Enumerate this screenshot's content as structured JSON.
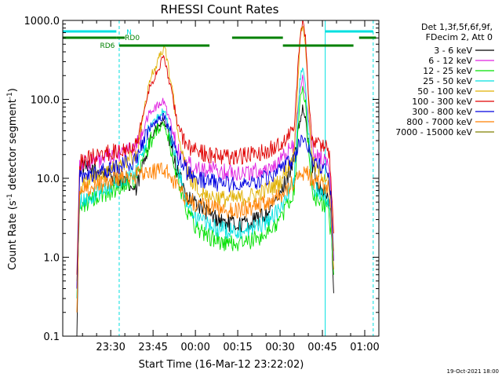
{
  "chart_data": {
    "type": "line",
    "title": "RHESSI Count Rates",
    "xlabel": "Start Time (16-Mar-12 23:22:02)",
    "ylabel": "Count Rate (s⁻¹ detector segment⁻¹)",
    "ylabel_parts": [
      "Count Rate (s",
      "-1",
      " detector segment",
      "-1",
      ")"
    ],
    "yscale": "log",
    "ylim": [
      0.1,
      1000.0
    ],
    "yticks": [
      0.1,
      1.0,
      10.0,
      100.0,
      1000.0
    ],
    "ytick_labels": [
      "0.1",
      "1.0",
      "10.0",
      "100.0",
      "1000.0"
    ],
    "x_range_min": [
      -9,
      103
    ],
    "xticks_min": [
      8,
      23,
      38,
      53,
      68,
      83,
      98
    ],
    "xtick_labels": [
      "23:30",
      "23:45",
      "00:00",
      "00:15",
      "00:30",
      "00:45",
      "01:00"
    ],
    "legend_position": "right",
    "legend_header": [
      "Det 1,3f,5f,6f,9f,",
      "FDecim 2, Att 0"
    ],
    "series": [
      {
        "name": "3 - 6 keV",
        "color": "#000000",
        "x": [
          -4,
          -3,
          0,
          5,
          10,
          17,
          22,
          27,
          30,
          32,
          35,
          38,
          43,
          48,
          53,
          58,
          63,
          68,
          73,
          75,
          76,
          77,
          78,
          79,
          80,
          81,
          82,
          85,
          86,
          87
        ],
        "y": [
          0.1,
          14,
          13,
          12,
          10,
          7,
          33,
          55,
          20,
          11,
          6,
          5,
          3.5,
          2.8,
          2.6,
          2.8,
          3.5,
          6,
          18,
          50,
          75,
          55,
          30,
          18,
          12,
          9,
          8,
          6,
          3,
          0.35
        ]
      },
      {
        "name": "6 - 12 keV",
        "color": "#e020e0",
        "x": [
          -4,
          -3,
          0,
          5,
          10,
          17,
          22,
          27,
          30,
          32,
          35,
          38,
          43,
          48,
          53,
          58,
          63,
          68,
          73,
          75,
          76,
          77,
          78,
          79,
          80,
          81,
          82,
          85,
          86,
          87
        ],
        "y": [
          0.4,
          15,
          16,
          17,
          20,
          25,
          70,
          95,
          40,
          22,
          16,
          14,
          13,
          12,
          12,
          12,
          13,
          16,
          28,
          120,
          190,
          120,
          55,
          30,
          22,
          20,
          19,
          16,
          8,
          0.9
        ]
      },
      {
        "name": "12 - 25 keV",
        "color": "#00e000",
        "x": [
          -4,
          -3,
          0,
          5,
          10,
          17,
          22,
          27,
          30,
          32,
          35,
          38,
          43,
          48,
          53,
          58,
          63,
          68,
          73,
          75,
          76,
          77,
          78,
          79,
          80,
          81,
          82,
          85,
          86,
          87
        ],
        "y": [
          0.3,
          4.5,
          5,
          6,
          7.5,
          10,
          30,
          50,
          18,
          9,
          4,
          2.5,
          1.8,
          1.5,
          1.5,
          1.6,
          2,
          3,
          7,
          90,
          140,
          90,
          25,
          9,
          6,
          5.5,
          5,
          4.5,
          2,
          0.6
        ]
      },
      {
        "name": "25 - 50 keV",
        "color": "#00e0e0",
        "x": [
          -4,
          -3,
          0,
          5,
          10,
          17,
          22,
          27,
          30,
          32,
          35,
          38,
          43,
          48,
          53,
          58,
          63,
          68,
          73,
          75,
          76,
          77,
          78,
          79,
          80,
          81,
          82,
          85,
          86,
          87
        ],
        "y": [
          0.3,
          5,
          5.5,
          7,
          9,
          12,
          45,
          75,
          25,
          12,
          5,
          3.2,
          2.5,
          2.2,
          2.2,
          2.3,
          2.8,
          4,
          10,
          160,
          260,
          150,
          40,
          12,
          8,
          7,
          6.5,
          5.5,
          2.5,
          0.7
        ]
      },
      {
        "name": "50 - 100 keV",
        "color": "#e0b000",
        "x": [
          -4,
          -3,
          0,
          5,
          10,
          17,
          22,
          27,
          30,
          32,
          35,
          38,
          43,
          48,
          53,
          58,
          63,
          68,
          73,
          75,
          76,
          77,
          78,
          79,
          80,
          81,
          82,
          85,
          86,
          87
        ],
        "y": [
          0.5,
          8,
          9,
          11,
          14,
          20,
          180,
          480,
          120,
          35,
          12,
          8,
          6,
          5.5,
          5.5,
          6,
          7,
          9,
          20,
          550,
          900,
          520,
          110,
          25,
          15,
          13,
          12,
          10,
          5,
          1.2
        ]
      },
      {
        "name": "100 - 300 keV",
        "color": "#e00000",
        "x": [
          -4,
          -3,
          0,
          5,
          10,
          17,
          22,
          27,
          30,
          32,
          35,
          38,
          43,
          48,
          53,
          58,
          63,
          68,
          73,
          75,
          76,
          77,
          78,
          79,
          80,
          81,
          82,
          85,
          86,
          87
        ],
        "y": [
          0.6,
          16,
          18,
          20,
          22,
          28,
          150,
          350,
          100,
          45,
          25,
          22,
          20,
          19,
          19,
          20,
          22,
          26,
          45,
          600,
          1000,
          600,
          130,
          40,
          30,
          28,
          27,
          25,
          12,
          2
        ]
      },
      {
        "name": "300 - 800 keV",
        "color": "#0000e0",
        "x": [
          -4,
          -3,
          0,
          5,
          10,
          17,
          22,
          27,
          30,
          32,
          35,
          38,
          43,
          48,
          53,
          58,
          63,
          68,
          73,
          75,
          76,
          77,
          78,
          79,
          80,
          81,
          82,
          85,
          86,
          87
        ],
        "y": [
          0.4,
          10,
          11,
          12,
          14,
          17,
          45,
          60,
          30,
          18,
          12,
          10,
          9,
          8.5,
          8.5,
          9,
          10,
          12,
          18,
          28,
          35,
          30,
          25,
          20,
          17,
          15,
          14,
          12,
          6,
          0.9
        ]
      },
      {
        "name": "800 - 7000 keV",
        "color": "#ff8000",
        "x": [
          -4,
          -3,
          0,
          5,
          10,
          17,
          22,
          27,
          30,
          32,
          35,
          38,
          43,
          48,
          53,
          58,
          63,
          68,
          73,
          75,
          76,
          77,
          78,
          79,
          80,
          81,
          82,
          85,
          86,
          87
        ],
        "y": [
          0.2,
          7,
          7.5,
          8.5,
          10,
          11,
          12,
          13,
          10,
          7,
          5.5,
          4.8,
          4.2,
          4,
          4,
          4.2,
          4.8,
          6,
          9,
          11,
          12,
          11.5,
          11,
          10,
          9.5,
          9,
          8.5,
          8,
          4,
          0.7
        ]
      },
      {
        "name": "7000 - 15000 keV",
        "color": "#808000",
        "x": [],
        "y": []
      }
    ],
    "attenuator_bars": {
      "color": "#00e0e0",
      "bars": [
        {
          "x": [
            -9,
            10
          ],
          "level": "upper"
        },
        {
          "x": [
            84,
            101
          ],
          "level": "upper"
        }
      ],
      "labels": [
        {
          "text": "N",
          "x": 13,
          "level": "upper"
        }
      ]
    },
    "rd_bars": {
      "color": "#008000",
      "bars": [
        {
          "x": [
            -9,
            10
          ],
          "level": "rd0"
        },
        {
          "x": [
            11,
            43
          ],
          "level": "rd6"
        },
        {
          "x": [
            10,
            13
          ],
          "level": "rd0"
        },
        {
          "x": [
            51,
            69
          ],
          "level": "rd0"
        },
        {
          "x": [
            69,
            94
          ],
          "level": "rd6"
        },
        {
          "x": [
            96,
            102
          ],
          "level": "rd0"
        }
      ],
      "labels": [
        {
          "text": "RD0",
          "x": 13,
          "level": "rd0"
        },
        {
          "text": "RD6",
          "x": 5,
          "level": "rd6"
        }
      ]
    },
    "vertical_lines": [
      {
        "x": -9,
        "style": "solid",
        "color": "#00e0e0"
      },
      {
        "x": 11,
        "style": "dashed",
        "color": "#00e0e0"
      },
      {
        "x": 84,
        "style": "solid",
        "color": "#00e0e0"
      },
      {
        "x": 101,
        "style": "dashed",
        "color": "#00e0e0"
      }
    ],
    "timestamp": "19-Oct-2021 18:00"
  }
}
